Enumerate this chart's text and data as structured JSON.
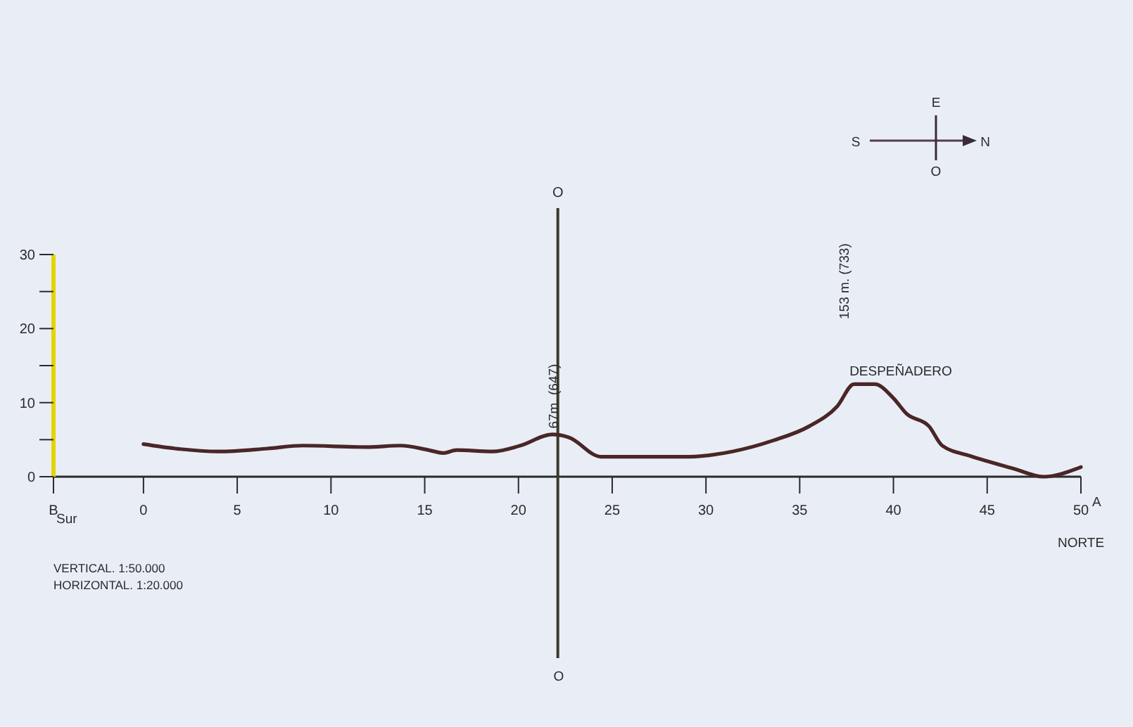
{
  "chart_data": {
    "type": "line",
    "x": [
      0,
      1.7,
      4,
      6.6,
      8.5,
      11.9,
      13.7,
      15.2,
      16,
      16.7,
      18.6,
      20.1,
      21.8,
      22.7,
      24.4,
      29.1,
      31.4,
      33.6,
      35.5,
      37,
      37.9,
      39,
      40,
      40.7,
      41.9,
      42.6,
      44.1,
      46.4,
      48,
      50
    ],
    "series": [
      {
        "color": "#4a2626",
        "values": [
          4.4,
          3.8,
          3.4,
          3.8,
          4.2,
          4.0,
          4.2,
          3.6,
          3.2,
          3.6,
          3.4,
          4.2,
          5.7,
          5.3,
          2.7,
          2.7,
          3.4,
          4.9,
          6.8,
          9.5,
          12.5,
          12.5,
          10.6,
          8.5,
          6.8,
          4.2,
          2.8,
          1.1,
          0,
          1.3
        ]
      }
    ],
    "xlim": [
      -4.8,
      50
    ],
    "xticks": [
      {
        "value": -4.8,
        "label": "B"
      },
      0,
      5,
      10,
      15,
      20,
      25,
      30,
      35,
      40,
      45,
      50
    ],
    "ylim": [
      0,
      30
    ],
    "yticks": [
      0,
      {
        "value": 5,
        "label": null
      },
      10,
      {
        "value": 15,
        "label": null
      },
      20,
      {
        "value": 25,
        "label": null
      },
      30
    ],
    "grid": false,
    "marker": "none",
    "line_style": "solid",
    "ref_lines": [
      {
        "axis": "x",
        "value": 22.1,
        "label": "O",
        "color": "#3a3a2a"
      }
    ],
    "annotations": [
      {
        "text": "67m. (647)",
        "x": 21.9,
        "y": 6.5
      },
      "153 m. (733)",
      "DESPEÑADERO",
      "O",
      "Sur",
      "A",
      "NORTE",
      "VERTICAL. 1:50.000",
      "HORIZONTAL. 1:20.000",
      "S",
      "N",
      "E",
      "O"
    ]
  }
}
